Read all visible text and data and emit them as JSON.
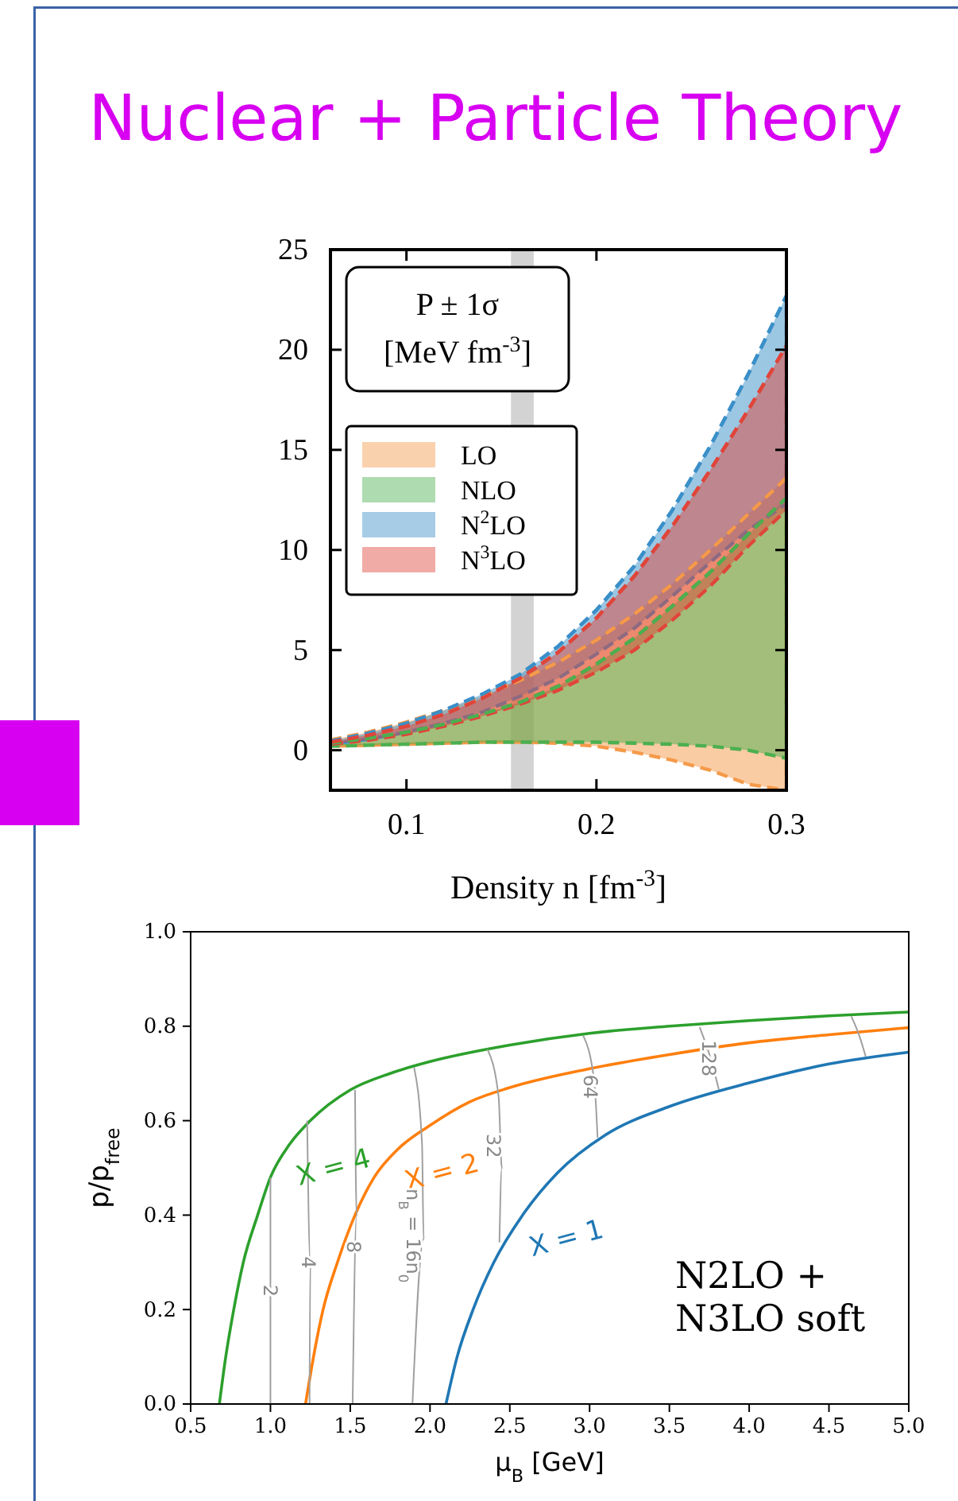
{
  "chart_data": [
    {
      "type": "line",
      "title": "Nuclear + Particle Theory",
      "xlabel": "Density n [fm$^{-3}$]",
      "annotations": [
        "P ± 1σ\n[MeV fm$^{-3}$]"
      ],
      "x": [
        0.06,
        0.08,
        0.1,
        0.12,
        0.14,
        0.16,
        0.18,
        0.2,
        0.22,
        0.24,
        0.26,
        0.28,
        0.3
      ],
      "series": [
        {
          "name": "LO",
          "color": "#f59a4a",
          "values": [
            0.5,
            0.9,
            1.4,
            2.0,
            2.7,
            3.5,
            4.4,
            5.5,
            6.8,
            8.3,
            10.0,
            11.8,
            13.6
          ],
          "lower": [
            0.2,
            0.25,
            0.3,
            0.35,
            0.4,
            0.4,
            0.35,
            0.2,
            -0.1,
            -0.5,
            -1.0,
            -1.7,
            -2
          ],
          "upper": [
            0.5,
            0.9,
            1.4,
            2.0,
            2.7,
            3.5,
            4.4,
            5.5,
            6.8,
            8.3,
            10.0,
            11.8,
            13.6
          ]
        },
        {
          "name": "NLO",
          "color": "#4caf50",
          "values": [
            0.35,
            0.6,
            0.9,
            1.3,
            1.8,
            2.4,
            3.2,
            4.3,
            5.6,
            7.2,
            8.9,
            10.8,
            12.6
          ],
          "lower": [
            0.2,
            0.25,
            0.3,
            0.35,
            0.4,
            0.4,
            0.4,
            0.4,
            0.35,
            0.3,
            0.2,
            0,
            -0.4
          ],
          "upper": [
            0.35,
            0.6,
            0.9,
            1.3,
            1.8,
            2.4,
            3.2,
            4.3,
            5.6,
            7.2,
            8.9,
            10.8,
            12.6
          ]
        },
        {
          "name": "N$^{2}$LO",
          "color": "#3a8fc8",
          "values": [
            0.45,
            0.85,
            1.35,
            2.0,
            2.8,
            3.8,
            5.2,
            7.0,
            9.2,
            12.0,
            15.2,
            18.8,
            22.7
          ],
          "lower": [
            0.3,
            0.55,
            0.9,
            1.35,
            1.9,
            2.7,
            3.6,
            4.8,
            6.1,
            7.7,
            9.4,
            11.0,
            12.3
          ],
          "upper": [
            0.45,
            0.85,
            1.35,
            2.0,
            2.8,
            3.8,
            5.2,
            7.0,
            9.2,
            12.0,
            15.2,
            18.8,
            22.7
          ]
        },
        {
          "name": "N$^{3}$LO",
          "color": "#e0453a",
          "values": [
            0.4,
            0.75,
            1.2,
            1.8,
            2.6,
            3.6,
            4.9,
            6.6,
            8.7,
            11.2,
            14.0,
            17.0,
            20.2
          ],
          "lower": [
            0.3,
            0.5,
            0.8,
            1.2,
            1.7,
            2.3,
            3.0,
            3.9,
            5.0,
            6.5,
            8.2,
            10.2,
            12.0
          ],
          "upper": [
            0.4,
            0.75,
            1.2,
            1.8,
            2.6,
            3.6,
            4.9,
            6.6,
            8.7,
            11.2,
            14.0,
            17.0,
            20.2
          ]
        }
      ],
      "bands": [
        {
          "axis": "x",
          "from": 0.155,
          "to": 0.167,
          "color": "#d3d3d3"
        }
      ],
      "xlim": [
        0.06,
        0.3
      ],
      "xticks": [
        0.1,
        0.2,
        0.3
      ],
      "ylim": [
        -2,
        25
      ],
      "yticks": [
        0,
        5,
        10,
        15,
        20,
        25
      ],
      "line_style": "dashed",
      "legend": "left"
    },
    {
      "type": "line",
      "xlabel": "μ$_{B}$ [GeV]",
      "ylabel": "p/p$_{free}$",
      "annotations": [
        "N2LO +\nN3LO soft"
      ],
      "series": [
        {
          "name": "X = 4",
          "color": "#2ca02c",
          "x": [
            0.68,
            0.72,
            0.77,
            0.83,
            0.92,
            1.0,
            1.12,
            1.25,
            1.5,
            1.75,
            2.0,
            2.5,
            3.0,
            3.5,
            4.0,
            4.5,
            5.0
          ],
          "values": [
            0,
            0.1,
            0.2,
            0.3,
            0.4,
            0.48,
            0.55,
            0.6,
            0.665,
            0.7,
            0.725,
            0.76,
            0.785,
            0.8,
            0.812,
            0.822,
            0.83
          ]
        },
        {
          "name": "X = 2",
          "color": "#ff7f0e",
          "x": [
            1.22,
            1.27,
            1.33,
            1.42,
            1.53,
            1.65,
            1.8,
            2.0,
            2.25,
            2.5,
            3.0,
            3.5,
            4.0,
            4.5,
            5.0
          ],
          "values": [
            0,
            0.1,
            0.2,
            0.3,
            0.4,
            0.48,
            0.54,
            0.59,
            0.64,
            0.67,
            0.71,
            0.74,
            0.765,
            0.782,
            0.797
          ]
        },
        {
          "name": "X = 1",
          "color": "#1f77b4",
          "x": [
            2.1,
            2.17,
            2.27,
            2.4,
            2.58,
            2.8,
            3.1,
            3.5,
            4.0,
            4.5,
            5.0
          ],
          "values": [
            0,
            0.1,
            0.2,
            0.3,
            0.4,
            0.49,
            0.57,
            0.63,
            0.68,
            0.72,
            0.745
          ]
        },
        {
          "name": "2",
          "color": "#a0a0a0",
          "x": [
            1.0,
            1.0
          ],
          "values": [
            0,
            0.48
          ]
        },
        {
          "name": "4",
          "color": "#a0a0a0",
          "x": [
            1.245,
            1.25,
            1.23
          ],
          "values": [
            0,
            0.3,
            0.6
          ]
        },
        {
          "name": "8",
          "color": "#a0a0a0",
          "x": [
            1.515,
            1.54,
            1.53
          ],
          "values": [
            0,
            0.4,
            0.665
          ]
        },
        {
          "name": "n$_{B}$ = 16n$_{0}$",
          "color": "#a0a0a0",
          "x": [
            1.89,
            1.96,
            1.95,
            1.9
          ],
          "values": [
            0,
            0.35,
            0.55,
            0.713
          ]
        },
        {
          "name": "32",
          "color": "#a0a0a0",
          "x": [
            2.435,
            2.45,
            2.43,
            2.36
          ],
          "values": [
            0.342,
            0.5,
            0.65,
            0.751
          ]
        },
        {
          "name": "64",
          "color": "#a0a0a0",
          "x": [
            3.05,
            3.03,
            2.96
          ],
          "values": [
            0.564,
            0.68,
            0.78
          ]
        },
        {
          "name": "128",
          "color": "#a0a0a0",
          "x": [
            3.81,
            3.76,
            3.69
          ],
          "values": [
            0.666,
            0.73,
            0.798
          ]
        },
        {
          "color": "#a0a0a0",
          "x": [
            4.73,
            4.69,
            4.64
          ],
          "values": [
            0.736,
            0.78,
            0.821
          ]
        }
      ],
      "xlim": [
        0.5,
        5
      ],
      "xticks": [
        {
          "value": 0.5,
          "label": "0.5"
        },
        {
          "value": 1,
          "label": "1.0"
        },
        {
          "value": 1.5,
          "label": "1.5"
        },
        {
          "value": 2,
          "label": "2.0"
        },
        {
          "value": 2.5,
          "label": "2.5"
        },
        {
          "value": 3,
          "label": "3.0"
        },
        {
          "value": 3.5,
          "label": "3.5"
        },
        {
          "value": 4,
          "label": "4.0"
        },
        {
          "value": 4.5,
          "label": "4.5"
        },
        {
          "value": 5,
          "label": "5.0"
        }
      ],
      "ylim": [
        0,
        1
      ],
      "yticks": [
        {
          "value": 0,
          "label": "0.0"
        },
        {
          "value": 0.2,
          "label": "0.2"
        },
        {
          "value": 0.4,
          "label": "0.4"
        },
        {
          "value": 0.6,
          "label": "0.6"
        },
        {
          "value": 0.8,
          "label": "0.8"
        },
        {
          "value": 1,
          "label": "1.0"
        }
      ],
      "line_style": "solid"
    }
  ]
}
